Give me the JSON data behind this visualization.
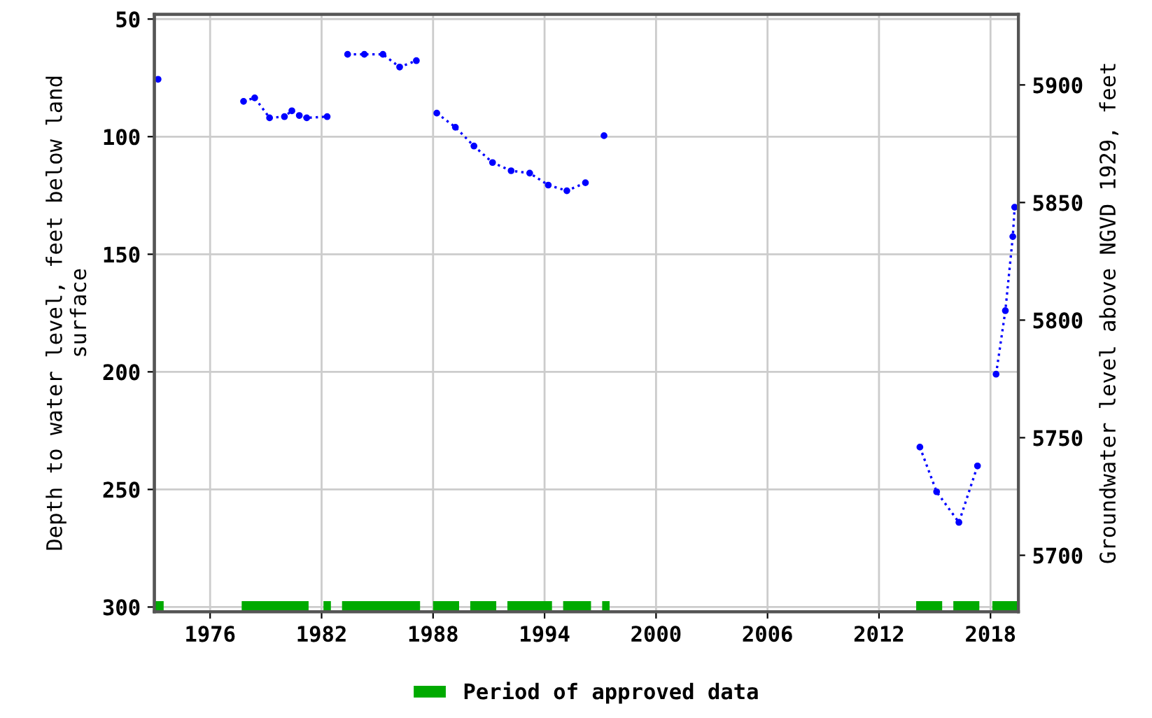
{
  "chart_data": {
    "type": "line",
    "ylabel": "Depth to water level, feet below land\nsurface",
    "y2label": "Groundwater level above NGVD 1929, feet",
    "xlim": [
      1973,
      2019.5
    ],
    "xticks": [
      1976,
      1982,
      1988,
      1994,
      2000,
      2006,
      2012,
      2018
    ],
    "ylim": [
      302,
      48
    ],
    "yticks": [
      50,
      100,
      150,
      200,
      250,
      300
    ],
    "y2lim": [
      5676,
      5930
    ],
    "y2ticks": [
      5700,
      5750,
      5800,
      5850,
      5900
    ],
    "grid": true,
    "legend": "bottom",
    "series": [
      {
        "color": "#0000ff",
        "marker": "circle",
        "line_style": "dotted",
        "x": [
          1973.2,
          1975,
          1977.8,
          1978.4,
          1979.2,
          1980.0,
          1980.4,
          1980.8,
          1981.2,
          1982.3,
          1982.8,
          1983.4,
          1984.3,
          1985.3,
          1986.2,
          1987.1,
          1987.6,
          1988.2,
          1989.2,
          1990.2,
          1991.2,
          1992.2,
          1993.2,
          1994.2,
          1995.2,
          1996.2,
          1996.7,
          1997.2,
          2005,
          2014.2,
          2015.1,
          2016.3,
          2017.3,
          2017.8,
          2018.3,
          2018.8,
          2019.2,
          2019.3
        ],
        "values": [
          75.6,
          null,
          85,
          83.5,
          92,
          91.5,
          89,
          91,
          92,
          91.5,
          null,
          65,
          65,
          65,
          70.4,
          67.7,
          null,
          90,
          96,
          104,
          111,
          114.5,
          115.5,
          120.6,
          123,
          119.6,
          null,
          99.6,
          null,
          232,
          251,
          264,
          240,
          null,
          201,
          174,
          142.5,
          130
        ]
      },
      {
        "name": "Period of approved data",
        "color": "#00aa00",
        "marker": "none",
        "line_style": "solid",
        "x": [
          1973.0,
          1973.5,
          1975,
          1977.7,
          1981.3,
          1981.7,
          1982.1,
          1982.5,
          1982.8,
          1983.1,
          1987.3,
          1987.6,
          1988.0,
          1989.4,
          1989.7,
          1990.0,
          1991.4,
          1991.7,
          1992.0,
          1994.4,
          1994.7,
          1995.0,
          1996.5,
          1996.8,
          1997.1,
          1997.5,
          2005,
          2014.0,
          2015.4,
          2015.7,
          2016.0,
          2017.4,
          2017.7,
          2018.1,
          2019.5
        ],
        "values": [
          300,
          300,
          null,
          300,
          300,
          null,
          300,
          300,
          null,
          300,
          300,
          null,
          300,
          300,
          null,
          300,
          300,
          null,
          300,
          300,
          null,
          300,
          300,
          null,
          300,
          300,
          null,
          300,
          300,
          null,
          300,
          300,
          null,
          300,
          300
        ]
      }
    ]
  }
}
